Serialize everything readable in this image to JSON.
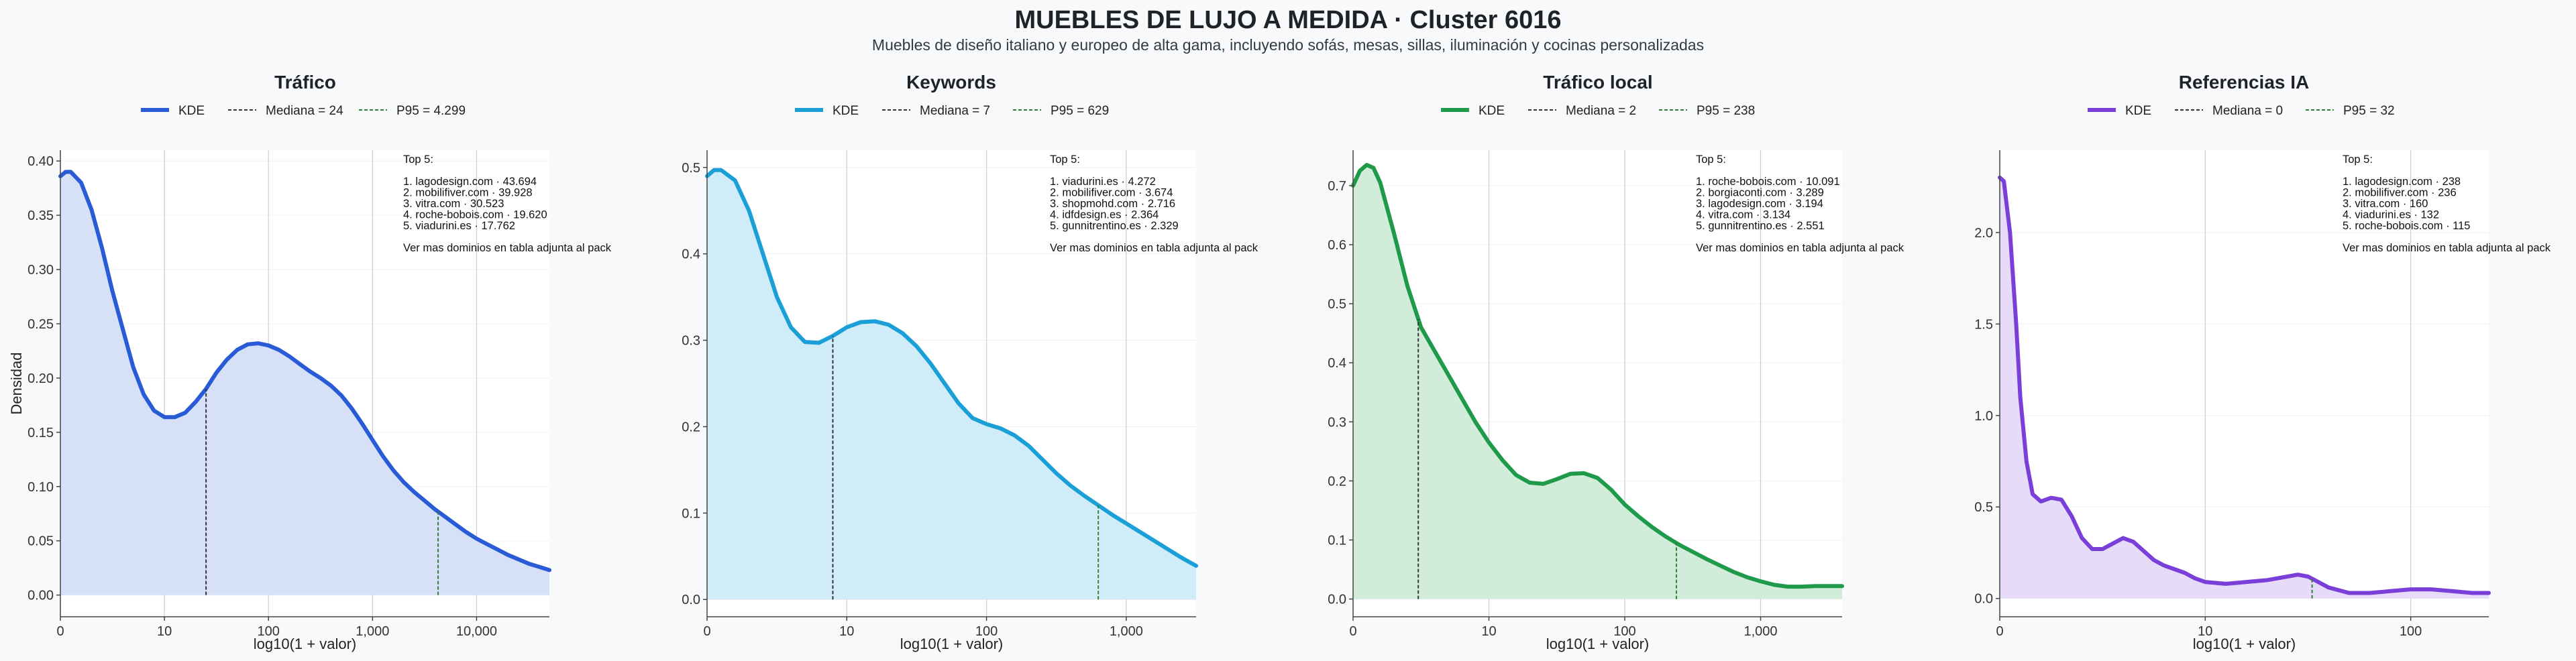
{
  "header": {
    "title": "MUEBLES DE LUJO A MEDIDA · Cluster 6016",
    "subtitle": "Muebles de diseño italiano y europeo de alta gama, incluyendo sofás, mesas, sillas, iluminación y cocinas personalizadas"
  },
  "colors": {
    "trafico": "#2a5bd7",
    "keywords": "#1a9fd6",
    "trafico_local": "#1e9a4a",
    "referencias_ia": "#7b3fd9",
    "median_line": "#333333",
    "p95_line": "#2e7d32"
  },
  "chart_data": [
    {
      "type": "area",
      "title": "Tráfico",
      "xlabel": "log10(1 + valor)",
      "ylabel": "Densidad",
      "xscale": "log1p",
      "xlim": [
        0,
        4.7
      ],
      "ylim": [
        -0.02,
        0.41
      ],
      "xticks": [
        {
          "v": 0,
          "label": "0"
        },
        {
          "v": 1,
          "label": "10"
        },
        {
          "v": 2,
          "label": "100"
        },
        {
          "v": 3,
          "label": "1,000"
        },
        {
          "v": 4,
          "label": "10,000"
        }
      ],
      "yticks": [
        {
          "v": 0,
          "label": "0.00"
        },
        {
          "v": 0.05,
          "label": "0.05"
        },
        {
          "v": 0.1,
          "label": "0.10"
        },
        {
          "v": 0.15,
          "label": "0.15"
        },
        {
          "v": 0.2,
          "label": "0.20"
        },
        {
          "v": 0.25,
          "label": "0.25"
        },
        {
          "v": 0.3,
          "label": "0.30"
        },
        {
          "v": 0.35,
          "label": "0.35"
        },
        {
          "v": 0.4,
          "label": "0.40"
        }
      ],
      "grid": "vertical",
      "legend": [
        "KDE",
        "Mediana = 24",
        "P95 = 4.299"
      ],
      "legend_placement": "top-center",
      "median_x": 1.4,
      "p95_x": 3.63,
      "series": [
        {
          "name": "KDE",
          "x": [
            0,
            0.05,
            0.1,
            0.2,
            0.3,
            0.4,
            0.5,
            0.6,
            0.7,
            0.8,
            0.9,
            1.0,
            1.1,
            1.2,
            1.3,
            1.4,
            1.5,
            1.6,
            1.7,
            1.8,
            1.9,
            2.0,
            2.1,
            2.2,
            2.3,
            2.4,
            2.5,
            2.6,
            2.7,
            2.8,
            2.9,
            3.0,
            3.1,
            3.2,
            3.3,
            3.4,
            3.5,
            3.6,
            3.7,
            3.8,
            3.9,
            4.0,
            4.1,
            4.2,
            4.3,
            4.4,
            4.5,
            4.6,
            4.7
          ],
          "y": [
            0.386,
            0.39,
            0.39,
            0.38,
            0.355,
            0.32,
            0.28,
            0.245,
            0.21,
            0.185,
            0.17,
            0.164,
            0.164,
            0.168,
            0.178,
            0.19,
            0.205,
            0.217,
            0.226,
            0.231,
            0.232,
            0.23,
            0.226,
            0.22,
            0.213,
            0.206,
            0.2,
            0.193,
            0.184,
            0.172,
            0.158,
            0.143,
            0.128,
            0.115,
            0.104,
            0.095,
            0.087,
            0.079,
            0.072,
            0.065,
            0.058,
            0.052,
            0.047,
            0.042,
            0.037,
            0.033,
            0.029,
            0.026,
            0.023
          ]
        }
      ],
      "annotation": [
        "Top 5:",
        "",
        "1. lagodesign.com · 43.694",
        "2. mobilifiver.com · 39.928",
        "3. vitra.com · 30.523",
        "4. roche-bobois.com · 19.620",
        "5. viadurini.es · 17.762",
        "",
        "Ver mas dominios en tabla adjunta al pack"
      ]
    },
    {
      "type": "area",
      "title": "Keywords",
      "xlabel": "log10(1 + valor)",
      "ylabel": "",
      "xscale": "log1p",
      "xlim": [
        0,
        3.5
      ],
      "ylim": [
        -0.02,
        0.52
      ],
      "xticks": [
        {
          "v": 0,
          "label": "0"
        },
        {
          "v": 1,
          "label": "10"
        },
        {
          "v": 2,
          "label": "100"
        },
        {
          "v": 3,
          "label": "1,000"
        }
      ],
      "yticks": [
        {
          "v": 0,
          "label": "0.0"
        },
        {
          "v": 0.1,
          "label": "0.1"
        },
        {
          "v": 0.2,
          "label": "0.2"
        },
        {
          "v": 0.3,
          "label": "0.3"
        },
        {
          "v": 0.4,
          "label": "0.4"
        },
        {
          "v": 0.5,
          "label": "0.5"
        }
      ],
      "grid": "vertical",
      "legend": [
        "KDE",
        "Mediana = 7",
        "P95 = 629"
      ],
      "legend_placement": "top-center",
      "median_x": 0.9,
      "p95_x": 2.8,
      "series": [
        {
          "name": "KDE",
          "x": [
            0,
            0.05,
            0.1,
            0.2,
            0.3,
            0.4,
            0.5,
            0.6,
            0.7,
            0.8,
            0.9,
            1.0,
            1.1,
            1.2,
            1.3,
            1.4,
            1.5,
            1.6,
            1.7,
            1.8,
            1.9,
            2.0,
            2.1,
            2.2,
            2.3,
            2.4,
            2.5,
            2.6,
            2.7,
            2.8,
            2.9,
            3.0,
            3.1,
            3.2,
            3.3,
            3.4,
            3.5
          ],
          "y": [
            0.49,
            0.497,
            0.497,
            0.485,
            0.45,
            0.4,
            0.35,
            0.315,
            0.298,
            0.297,
            0.305,
            0.315,
            0.321,
            0.322,
            0.318,
            0.308,
            0.293,
            0.273,
            0.25,
            0.227,
            0.21,
            0.203,
            0.198,
            0.19,
            0.178,
            0.162,
            0.146,
            0.132,
            0.12,
            0.109,
            0.098,
            0.088,
            0.078,
            0.068,
            0.058,
            0.048,
            0.039
          ]
        }
      ],
      "annotation": [
        "Top 5:",
        "",
        "1. viadurini.es · 4.272",
        "2. mobilifiver.com · 3.674",
        "3. shopmohd.com · 2.716",
        "4. idfdesign.es · 2.364",
        "5. gunnitrentino.es · 2.329",
        "",
        "Ver mas dominios en tabla adjunta al pack"
      ]
    },
    {
      "type": "area",
      "title": "Tráfico local",
      "xlabel": "log10(1 + valor)",
      "ylabel": "",
      "xscale": "log1p",
      "xlim": [
        0,
        3.6
      ],
      "ylim": [
        -0.03,
        0.76
      ],
      "xticks": [
        {
          "v": 0,
          "label": "0"
        },
        {
          "v": 1,
          "label": "10"
        },
        {
          "v": 2,
          "label": "100"
        },
        {
          "v": 3,
          "label": "1,000"
        }
      ],
      "yticks": [
        {
          "v": 0,
          "label": "0.0"
        },
        {
          "v": 0.1,
          "label": "0.1"
        },
        {
          "v": 0.2,
          "label": "0.2"
        },
        {
          "v": 0.3,
          "label": "0.3"
        },
        {
          "v": 0.4,
          "label": "0.4"
        },
        {
          "v": 0.5,
          "label": "0.5"
        },
        {
          "v": 0.6,
          "label": "0.6"
        },
        {
          "v": 0.7,
          "label": "0.7"
        }
      ],
      "grid": "vertical",
      "legend": [
        "KDE",
        "Mediana = 2",
        "P95 = 238"
      ],
      "legend_placement": "top-center",
      "median_x": 0.48,
      "p95_x": 2.38,
      "series": [
        {
          "name": "KDE",
          "x": [
            0,
            0.05,
            0.1,
            0.15,
            0.2,
            0.3,
            0.4,
            0.5,
            0.6,
            0.7,
            0.8,
            0.9,
            1.0,
            1.1,
            1.2,
            1.3,
            1.4,
            1.5,
            1.6,
            1.7,
            1.8,
            1.9,
            2.0,
            2.1,
            2.2,
            2.3,
            2.4,
            2.5,
            2.6,
            2.7,
            2.8,
            2.9,
            3.0,
            3.1,
            3.2,
            3.3,
            3.4,
            3.5,
            3.6
          ],
          "y": [
            0.7,
            0.725,
            0.735,
            0.73,
            0.705,
            0.62,
            0.53,
            0.46,
            0.42,
            0.38,
            0.34,
            0.3,
            0.265,
            0.235,
            0.21,
            0.197,
            0.195,
            0.203,
            0.212,
            0.213,
            0.205,
            0.185,
            0.16,
            0.14,
            0.122,
            0.106,
            0.092,
            0.08,
            0.068,
            0.057,
            0.046,
            0.037,
            0.03,
            0.024,
            0.021,
            0.021,
            0.022,
            0.022,
            0.022
          ]
        }
      ],
      "annotation": [
        "Top 5:",
        "",
        "1. roche-bobois.com · 10.091",
        "2. borgiaconti.com · 3.289",
        "3. lagodesign.com · 3.194",
        "4. vitra.com · 3.134",
        "5. gunnitrentino.es · 2.551",
        "",
        "Ver mas dominios en tabla adjunta al pack"
      ]
    },
    {
      "type": "area",
      "title": "Referencias IA",
      "xlabel": "log10(1 + valor)",
      "ylabel": "",
      "xscale": "log1p",
      "xlim": [
        0,
        2.38
      ],
      "ylim": [
        -0.1,
        2.45
      ],
      "xticks": [
        {
          "v": 0,
          "label": "0"
        },
        {
          "v": 1,
          "label": "10"
        },
        {
          "v": 2,
          "label": "100"
        }
      ],
      "yticks": [
        {
          "v": 0,
          "label": "0.0"
        },
        {
          "v": 0.5,
          "label": "0.5"
        },
        {
          "v": 1.0,
          "label": "1.0"
        },
        {
          "v": 1.5,
          "label": "1.5"
        },
        {
          "v": 2.0,
          "label": "2.0"
        }
      ],
      "grid": "vertical",
      "legend": [
        "KDE",
        "Mediana = 0",
        "P95 = 32"
      ],
      "legend_placement": "top-center",
      "median_x": 0,
      "p95_x": 1.52,
      "series": [
        {
          "name": "KDE",
          "x": [
            0,
            0.02,
            0.05,
            0.08,
            0.1,
            0.13,
            0.16,
            0.2,
            0.25,
            0.3,
            0.35,
            0.4,
            0.45,
            0.5,
            0.55,
            0.6,
            0.65,
            0.7,
            0.75,
            0.8,
            0.85,
            0.9,
            0.95,
            1.0,
            1.1,
            1.2,
            1.3,
            1.4,
            1.45,
            1.5,
            1.55,
            1.6,
            1.7,
            1.8,
            1.9,
            2.0,
            2.1,
            2.2,
            2.3,
            2.38
          ],
          "y": [
            2.3,
            2.28,
            2.0,
            1.5,
            1.1,
            0.75,
            0.57,
            0.53,
            0.55,
            0.54,
            0.45,
            0.33,
            0.27,
            0.27,
            0.3,
            0.33,
            0.31,
            0.26,
            0.21,
            0.18,
            0.16,
            0.14,
            0.11,
            0.09,
            0.08,
            0.09,
            0.1,
            0.12,
            0.13,
            0.12,
            0.09,
            0.06,
            0.03,
            0.03,
            0.04,
            0.05,
            0.05,
            0.04,
            0.03,
            0.03
          ]
        }
      ],
      "annotation": [
        "Top 5:",
        "",
        "1. lagodesign.com · 238",
        "2. mobilifiver.com · 236",
        "3. vitra.com · 160",
        "4. viadurini.es · 132",
        "5. roche-bobois.com · 115",
        "",
        "Ver mas dominios en tabla adjunta al pack"
      ]
    }
  ]
}
